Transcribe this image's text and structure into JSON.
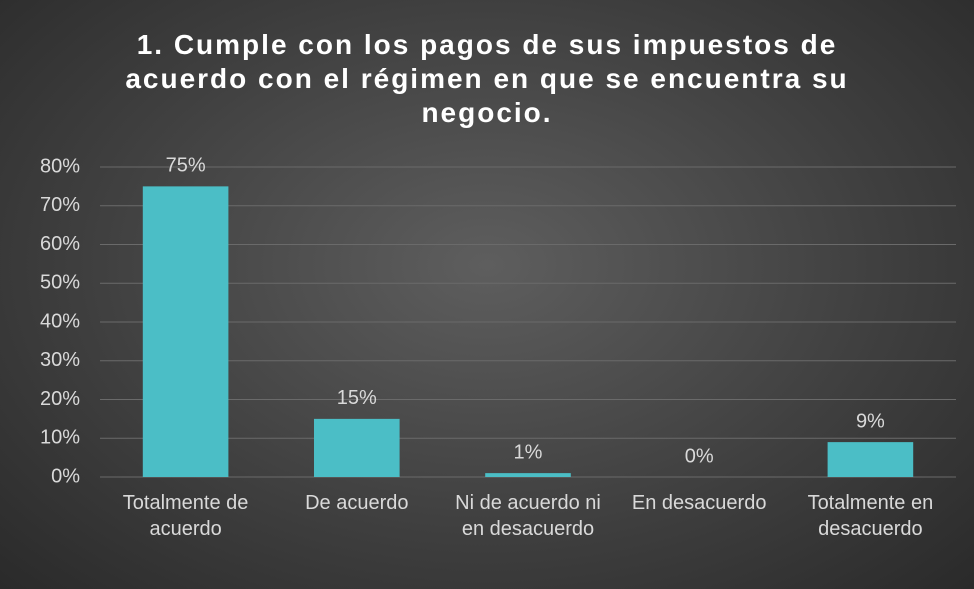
{
  "chart_data": {
    "type": "bar",
    "title": "1. Cumple con los pagos de sus impuestos de acuerdo con el régimen en que se encuentra su negocio.",
    "categories": [
      "Totalmente de acuerdo",
      "De acuerdo",
      "Ni de acuerdo ni en desacuerdo",
      "En desacuerdo",
      "Totalmente en desacuerdo"
    ],
    "values": [
      75,
      15,
      1,
      0,
      9
    ],
    "value_labels": [
      "75%",
      "15%",
      "1%",
      "0%",
      "9%"
    ],
    "color": "#4bbec6",
    "ylim": [
      0,
      80
    ],
    "yticks": [
      {
        "value": 0,
        "label": "0%"
      },
      {
        "value": 10,
        "label": "10%"
      },
      {
        "value": 20,
        "label": "20%"
      },
      {
        "value": 30,
        "label": "30%"
      },
      {
        "value": 40,
        "label": "40%"
      },
      {
        "value": 50,
        "label": "50%"
      },
      {
        "value": 60,
        "label": "60%"
      },
      {
        "value": 70,
        "label": "70%"
      },
      {
        "value": 80,
        "label": "80%"
      }
    ],
    "grid": true
  }
}
